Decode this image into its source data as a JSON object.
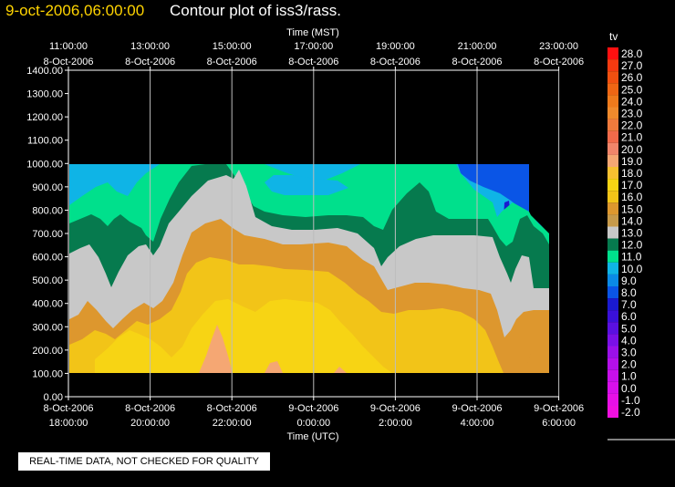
{
  "title": {
    "datetime": "9-oct-2006,06:00:00",
    "text": "Contour plot of iss3/rass."
  },
  "quality_notice": "REAL-TIME DATA, NOT CHECKED FOR QUALITY",
  "colors": {
    "background": "#000000",
    "title_date": "#ffd400",
    "contour_bands": {
      "light_orange_19": "#f5a773",
      "yellow_17": "#f7d414",
      "gold_16": "#f2c418",
      "orange_15": "#dd972e",
      "grey_13": "#c8c8c8",
      "darkgreen_12": "#067a4e",
      "green_11": "#00e08c",
      "sky_10": "#0fb4e6",
      "blue_8": "#0a55e6",
      "indigo_7": "#1a1ad0"
    }
  },
  "chart_data": {
    "type": "heatmap",
    "title": "Contour plot of iss3/rass.",
    "top_axis": {
      "label": "Time (MST)",
      "ticks": [
        {
          "time": "11:00:00",
          "date": "8-Oct-2006"
        },
        {
          "time": "13:00:00",
          "date": "8-Oct-2006"
        },
        {
          "time": "15:00:00",
          "date": "8-Oct-2006"
        },
        {
          "time": "17:00:00",
          "date": "8-Oct-2006"
        },
        {
          "time": "19:00:00",
          "date": "8-Oct-2006"
        },
        {
          "time": "21:00:00",
          "date": "8-Oct-2006"
        },
        {
          "time": "23:00:00",
          "date": "8-Oct-2006"
        }
      ]
    },
    "bottom_axis": {
      "label": "Time (UTC)",
      "ticks": [
        {
          "date": "8-Oct-2006",
          "time": "18:00:00"
        },
        {
          "date": "8-Oct-2006",
          "time": "20:00:00"
        },
        {
          "date": "8-Oct-2006",
          "time": "22:00:00"
        },
        {
          "date": "9-Oct-2006",
          "time": "0:00:00"
        },
        {
          "date": "9-Oct-2006",
          "time": "2:00:00"
        },
        {
          "date": "9-Oct-2006",
          "time": "4:00:00"
        },
        {
          "date": "9-Oct-2006",
          "time": "6:00:00"
        }
      ],
      "range": [
        "2006-10-08 18:00 UTC",
        "2006-10-09 06:00 UTC"
      ]
    },
    "y_axis": {
      "ticks": [
        "1400.00",
        "1300.00",
        "1200.00",
        "1100.00",
        "1000.00",
        "900.00",
        "800.00",
        "700.00",
        "600.00",
        "500.00",
        "400.00",
        "300.00",
        "200.00",
        "100.00",
        "0.00"
      ],
      "range": [
        0,
        1400
      ]
    },
    "grid": "vertical lines at major time ticks",
    "legend": {
      "title": "tv",
      "placement": "right",
      "entries": [
        {
          "value": "28.0",
          "color": "#ff1010"
        },
        {
          "value": "27.0",
          "color": "#f53a10"
        },
        {
          "value": "26.0",
          "color": "#f05010"
        },
        {
          "value": "25.0",
          "color": "#ee6614"
        },
        {
          "value": "24.0",
          "color": "#ee7a1c"
        },
        {
          "value": "23.0",
          "color": "#ef8a2c"
        },
        {
          "value": "22.0",
          "color": "#ef7a3c"
        },
        {
          "value": "21.0",
          "color": "#f06a4a"
        },
        {
          "value": "20.0",
          "color": "#f0856a"
        },
        {
          "value": "19.0",
          "color": "#f5a773"
        },
        {
          "value": "18.0",
          "color": "#f7c030"
        },
        {
          "value": "17.0",
          "color": "#f7d414"
        },
        {
          "value": "16.0",
          "color": "#f2c418"
        },
        {
          "value": "15.0",
          "color": "#dd972e"
        },
        {
          "value": "14.0",
          "color": "#c79a4a"
        },
        {
          "value": "13.0",
          "color": "#c8c8c8"
        },
        {
          "value": "12.0",
          "color": "#067a4e"
        },
        {
          "value": "11.0",
          "color": "#00e08c"
        },
        {
          "value": "10.0",
          "color": "#0fb4e6"
        },
        {
          "value": "9.0",
          "color": "#0a8ae6"
        },
        {
          "value": "8.0",
          "color": "#0a55e6"
        },
        {
          "value": "7.0",
          "color": "#1a1ad0"
        },
        {
          "value": "6.0",
          "color": "#3a10d8"
        },
        {
          "value": "5.0",
          "color": "#5a10e0"
        },
        {
          "value": "4.0",
          "color": "#7a10e6"
        },
        {
          "value": "3.0",
          "color": "#9a10e8"
        },
        {
          "value": "2.0",
          "color": "#b410ea"
        },
        {
          "value": "1.0",
          "color": "#c810ea"
        },
        {
          "value": "0.0",
          "color": "#d810ea"
        },
        {
          "value": "-1.0",
          "color": "#e810e6"
        },
        {
          "value": "-2.0",
          "color": "#f010e0"
        }
      ]
    }
  }
}
